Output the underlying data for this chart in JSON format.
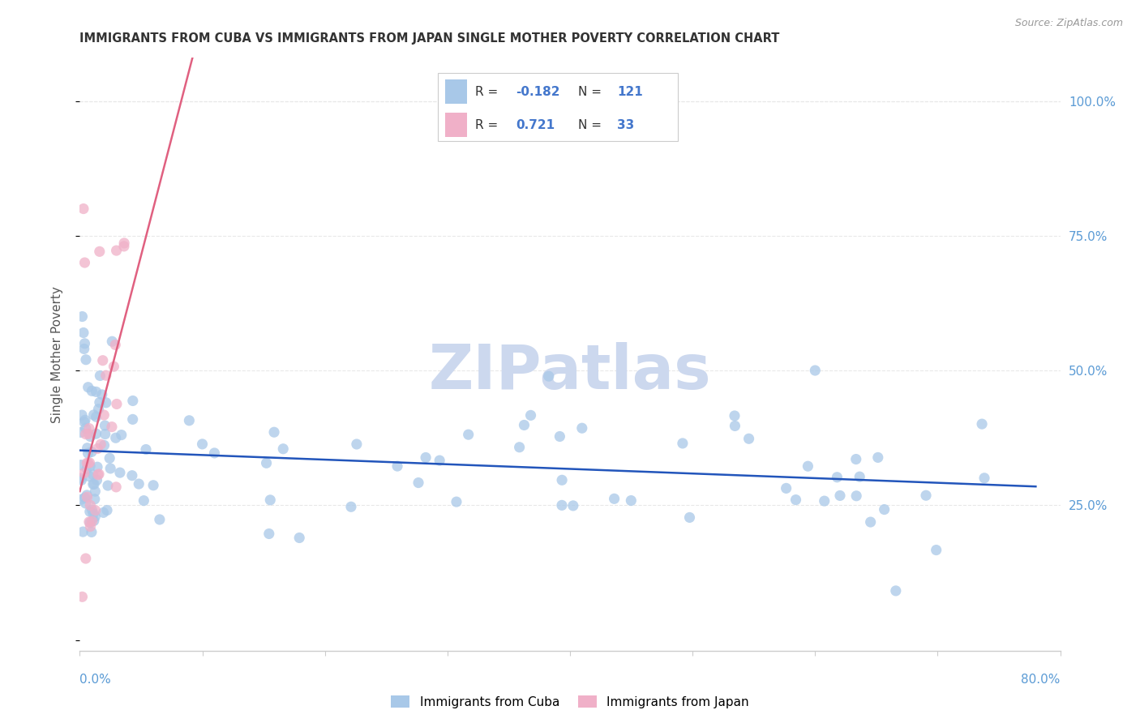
{
  "title": "IMMIGRANTS FROM CUBA VS IMMIGRANTS FROM JAPAN SINGLE MOTHER POVERTY CORRELATION CHART",
  "source": "Source: ZipAtlas.com",
  "ylabel": "Single Mother Poverty",
  "right_yticklabels": [
    "",
    "25.0%",
    "50.0%",
    "75.0%",
    "100.0%"
  ],
  "right_ytick_vals": [
    0.0,
    0.25,
    0.5,
    0.75,
    1.0
  ],
  "xlim": [
    0.0,
    0.8
  ],
  "ylim": [
    -0.02,
    1.08
  ],
  "r_cuba": -0.182,
  "n_cuba": 121,
  "r_japan": 0.721,
  "n_japan": 33,
  "color_cuba": "#a8c8e8",
  "color_japan": "#f0b0c8",
  "color_cuba_line": "#2255bb",
  "color_japan_line": "#e06080",
  "watermark": "ZIPatlas",
  "watermark_color": "#ccd8ee",
  "legend_r_color": "#4477cc",
  "legend_n_color": "#4477cc",
  "grid_color": "#e8e8e8",
  "title_color": "#333333",
  "source_color": "#999999",
  "axis_label_color": "#555555",
  "tick_color": "#aaaaaa",
  "right_tick_color": "#5b9bd5"
}
